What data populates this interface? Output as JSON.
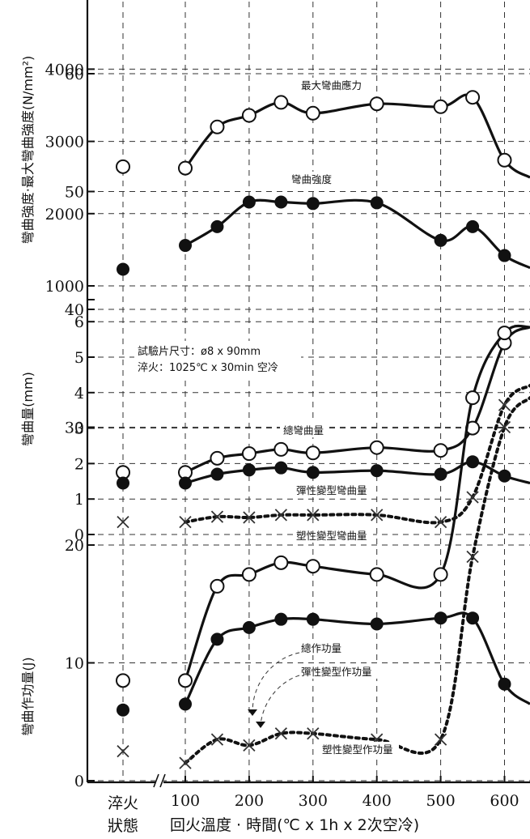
{
  "chart_data": [
    {
      "type": "line",
      "ylabel": "彎曲強度·最大彎曲強度(N/mm²)",
      "yticks": [
        1000,
        2000,
        3000,
        4000
      ],
      "ylim": [
        1000,
        5000
      ],
      "xlim": [
        0,
        640
      ],
      "series": [
        {
          "name": "最大彎曲應力",
          "marker": "open",
          "quench": 2650,
          "x": [
            100,
            150,
            200,
            250,
            300,
            400,
            500,
            550,
            600,
            640
          ],
          "y": [
            2630,
            3200,
            3360,
            3540,
            3390,
            3520,
            3480,
            3610,
            2740,
            2500
          ]
        },
        {
          "name": "彎曲強度",
          "marker": "filled",
          "quench": 1230,
          "x": [
            100,
            150,
            200,
            250,
            300,
            400,
            500,
            550,
            600,
            640
          ],
          "y": [
            1560,
            1820,
            2160,
            2160,
            2140,
            2150,
            1630,
            1820,
            1420,
            1250
          ]
        }
      ]
    },
    {
      "type": "line",
      "ylabel": "彎曲量(mm)",
      "yticks": [
        0,
        1,
        2,
        3,
        4,
        5,
        6
      ],
      "ylim": [
        -0.2,
        6
      ],
      "xlim": [
        0,
        640
      ],
      "series": [
        {
          "name": "總彎曲量",
          "marker": "open",
          "quench": 1.75,
          "x": [
            100,
            150,
            200,
            250,
            300,
            400,
            500,
            550,
            600,
            640
          ],
          "y": [
            1.75,
            2.15,
            2.28,
            2.4,
            2.3,
            2.45,
            2.37,
            3.0,
            5.4,
            5.85
          ]
        },
        {
          "name": "彈性變型彎曲量",
          "marker": "filled",
          "quench": 1.45,
          "x": [
            100,
            150,
            200,
            250,
            300,
            400,
            500,
            550,
            600,
            640
          ],
          "y": [
            1.45,
            1.7,
            1.82,
            1.88,
            1.75,
            1.8,
            1.7,
            2.05,
            1.65,
            1.45
          ]
        },
        {
          "name": "塑性變型彎曲量",
          "marker": "x",
          "quench": 0.35,
          "x": [
            100,
            150,
            200,
            250,
            300,
            400,
            500,
            550,
            600,
            640
          ],
          "y": [
            0.35,
            0.5,
            0.48,
            0.55,
            0.55,
            0.55,
            0.35,
            1.05,
            3.65,
            4.2
          ]
        }
      ],
      "annotation": [
        "試驗片尺寸：ø8 x 90mm",
        "淬火：1025℃ x 30min 空冷"
      ]
    },
    {
      "type": "line",
      "ylabel": "彎曲作功量(J)",
      "yticks": [
        0,
        10,
        20,
        30,
        40,
        50,
        60
      ],
      "ylim": [
        0,
        70
      ],
      "xlim": [
        0,
        640
      ],
      "series": [
        {
          "name": "總作功量",
          "marker": "open",
          "quench": 8.5,
          "x": [
            100,
            150,
            200,
            250,
            300,
            400,
            500,
            550,
            600,
            640
          ],
          "y": [
            8.5,
            16.5,
            17.5,
            18.5,
            18.2,
            17.5,
            17.5,
            32.5,
            38,
            38.5
          ]
        },
        {
          "name": "彈性變型作功量",
          "marker": "filled",
          "quench": 6,
          "x": [
            100,
            150,
            200,
            250,
            300,
            400,
            500,
            550,
            600,
            640
          ],
          "y": [
            6.5,
            12,
            13,
            13.7,
            13.7,
            13.3,
            13.8,
            13.8,
            8.2,
            6.5
          ]
        },
        {
          "name": "塑性變型作功量",
          "marker": "x",
          "quench": 2.5,
          "x": [
            100,
            150,
            200,
            250,
            300,
            400,
            500,
            550,
            600,
            640
          ],
          "y": [
            1.5,
            3.5,
            3,
            4,
            4,
            3.5,
            3.5,
            19,
            30,
            32.5
          ]
        }
      ]
    }
  ],
  "xaxis": {
    "ticks": [
      "100",
      "200",
      "300",
      "400",
      "500",
      "600"
    ],
    "tick_values": [
      100,
      200,
      300,
      400,
      500,
      600
    ],
    "label": "回火溫度 · 時間(℃ x 1h x 2次空冷)",
    "quench_label": [
      "淬火",
      "狀態"
    ]
  }
}
